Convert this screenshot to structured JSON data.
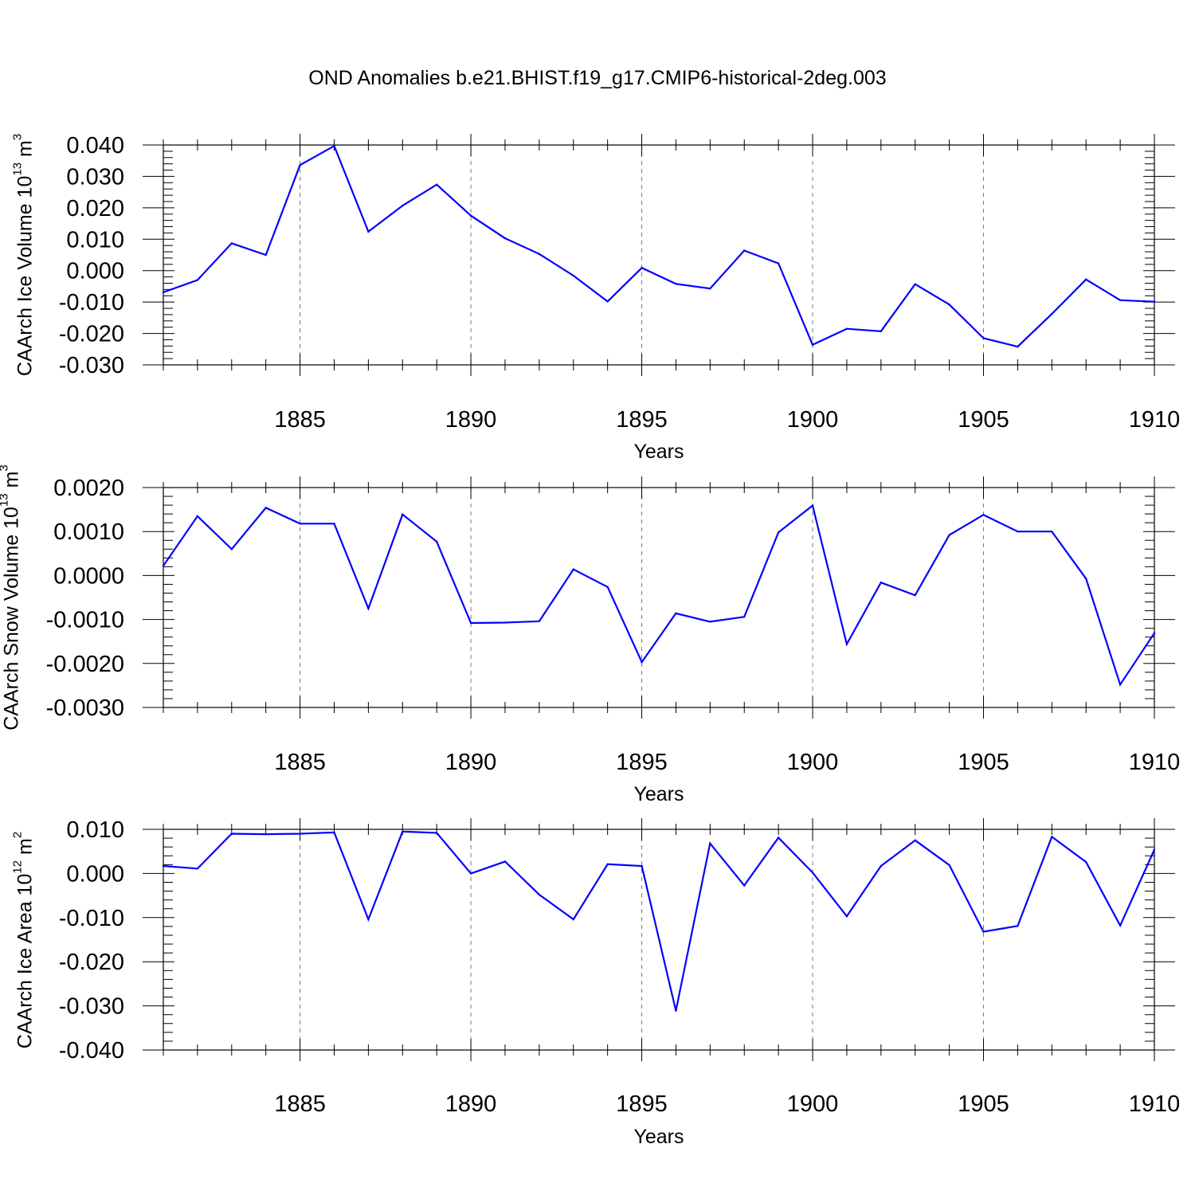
{
  "title": "OND Anomalies b.e21.BHIST.f19_g17.CMIP6-historical-2deg.003",
  "colors": {
    "series": "#0000ff",
    "axis": "#000000",
    "grid": "#777777"
  },
  "chart_data": [
    {
      "type": "line",
      "ylabel_main": "CAArch Ice Volume 10",
      "ylabel_exp": "13",
      "ylabel_unit": " m",
      "ylabel_unit_exp": "3",
      "xlabel": "Years",
      "xlim": [
        1881,
        1910
      ],
      "ylim": [
        -0.03,
        0.04
      ],
      "x_ticks": [
        1885,
        1890,
        1895,
        1900,
        1905,
        1910
      ],
      "y_ticks": [
        -0.03,
        -0.02,
        -0.01,
        0.0,
        0.01,
        0.02,
        0.03,
        0.04
      ],
      "y_tick_labels": [
        "-0.030",
        "-0.020",
        "-0.010",
        "0.000",
        "0.010",
        "0.020",
        "0.030",
        "0.040"
      ],
      "grid": "x-dashed",
      "x": [
        1881,
        1882,
        1883,
        1884,
        1885,
        1886,
        1887,
        1888,
        1889,
        1890,
        1891,
        1892,
        1893,
        1894,
        1895,
        1896,
        1897,
        1898,
        1899,
        1900,
        1901,
        1902,
        1903,
        1904,
        1905,
        1906,
        1907,
        1908,
        1909,
        1910
      ],
      "values": [
        -0.0069,
        -0.003,
        0.0087,
        0.005,
        0.0336,
        0.0397,
        0.0124,
        0.0207,
        0.0274,
        0.0175,
        0.0103,
        0.0053,
        -0.0016,
        -0.0098,
        0.0009,
        -0.0042,
        -0.0057,
        0.0064,
        0.0023,
        -0.0236,
        -0.0185,
        -0.0193,
        -0.0043,
        -0.0108,
        -0.0215,
        -0.0242,
        -0.0138,
        -0.0028,
        -0.0094,
        -0.0099
      ]
    },
    {
      "type": "line",
      "ylabel_main": "CAArch Snow Volume 10",
      "ylabel_exp": "13",
      "ylabel_unit": " m",
      "ylabel_unit_exp": "3",
      "xlabel": "Years",
      "xlim": [
        1881,
        1910
      ],
      "ylim": [
        -0.003,
        0.002
      ],
      "x_ticks": [
        1885,
        1890,
        1895,
        1900,
        1905,
        1910
      ],
      "y_ticks": [
        -0.003,
        -0.002,
        -0.001,
        0.0,
        0.001,
        0.002
      ],
      "y_tick_labels": [
        "-0.0030",
        "-0.0020",
        "-0.0010",
        "0.0000",
        "0.0010",
        "0.0020"
      ],
      "grid": "x-dashed",
      "x": [
        1881,
        1882,
        1883,
        1884,
        1885,
        1886,
        1887,
        1888,
        1889,
        1890,
        1891,
        1892,
        1893,
        1894,
        1895,
        1896,
        1897,
        1898,
        1899,
        1900,
        1901,
        1902,
        1903,
        1904,
        1905,
        1906,
        1907,
        1908,
        1909,
        1910
      ],
      "values": [
        0.00022,
        0.00135,
        0.0006,
        0.00154,
        0.00118,
        0.00118,
        -0.00075,
        0.00139,
        0.00077,
        -0.00108,
        -0.00107,
        -0.00104,
        0.00014,
        -0.00026,
        -0.00197,
        -0.00086,
        -0.00105,
        -0.00094,
        0.00098,
        0.00159,
        -0.00156,
        -0.00016,
        -0.00045,
        0.00092,
        0.00138,
        0.001,
        0.001,
        -7e-05,
        -0.00248,
        -0.00131
      ]
    },
    {
      "type": "line",
      "ylabel_main": "CAArch Ice Area 10",
      "ylabel_exp": "12",
      "ylabel_unit": " m",
      "ylabel_unit_exp": "2",
      "xlabel": "Years",
      "xlim": [
        1881,
        1910
      ],
      "ylim": [
        -0.04,
        0.01
      ],
      "x_ticks": [
        1885,
        1890,
        1895,
        1900,
        1905,
        1910
      ],
      "y_ticks": [
        -0.04,
        -0.03,
        -0.02,
        -0.01,
        0.0,
        0.01
      ],
      "y_tick_labels": [
        "-0.040",
        "-0.030",
        "-0.020",
        "-0.010",
        "0.000",
        "0.010"
      ],
      "grid": "x-dashed",
      "x": [
        1881,
        1882,
        1883,
        1884,
        1885,
        1886,
        1887,
        1888,
        1889,
        1890,
        1891,
        1892,
        1893,
        1894,
        1895,
        1896,
        1897,
        1898,
        1899,
        1900,
        1901,
        1902,
        1903,
        1904,
        1905,
        1906,
        1907,
        1908,
        1909,
        1910
      ],
      "values": [
        0.0017,
        0.0011,
        0.009,
        0.0089,
        0.009,
        0.0093,
        -0.0104,
        0.0095,
        0.0092,
        0.0,
        0.0027,
        -0.0048,
        -0.0104,
        0.0021,
        0.0017,
        -0.0311,
        0.0068,
        -0.0027,
        0.0081,
        0.0002,
        -0.0097,
        0.0017,
        0.0075,
        0.0019,
        -0.0132,
        -0.0119,
        0.0083,
        0.0026,
        -0.0118,
        0.0054
      ]
    }
  ]
}
